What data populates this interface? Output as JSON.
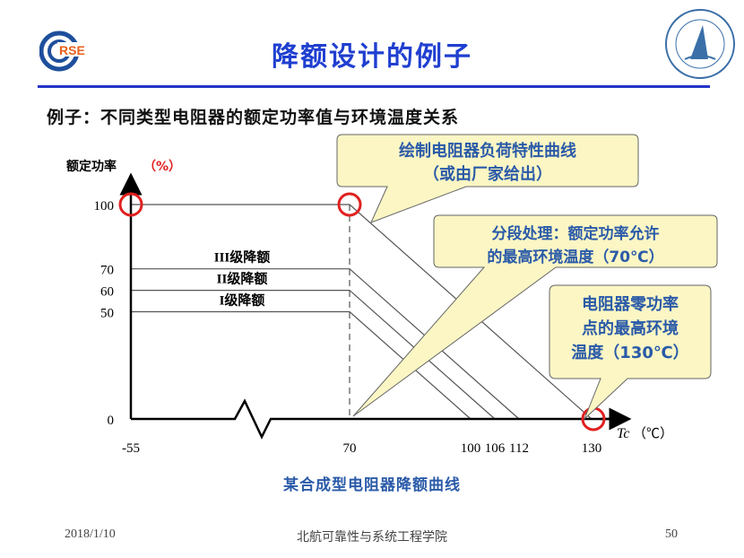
{
  "slide": {
    "title": "降额设计的例子",
    "subtitle": "例子：不同类型电阻器的额定功率值与环境温度关系",
    "caption": "某合成型电阻器降额曲线",
    "footer": {
      "date": "2018/1/10",
      "org": "北航可靠性与系统工程学院",
      "page": "50"
    },
    "logo_left_text": "RSE",
    "logo_right_text": "北京航空航天大学 BEIHANG UNIVERSITY 1952"
  },
  "colors": {
    "title": "#1f3fd0",
    "callout_fill": "#fbf6c4",
    "callout_text": "#2a5aa8",
    "marker": "#e02020"
  },
  "chart_data": {
    "type": "line",
    "ylabel": "额定功率",
    "ylabel_unit": "（%）",
    "xlabel": "Tc",
    "xlabel_unit": "（℃）",
    "x_ticks": [
      "-55",
      "70",
      "100",
      "106",
      "112",
      "130"
    ],
    "y_ticks": [
      "100",
      "70",
      "60",
      "50",
      "0"
    ],
    "x_axis_break": true,
    "series": [
      {
        "points": [
          [
            -55,
            100
          ],
          [
            70,
            100
          ],
          [
            130,
            0
          ]
        ]
      },
      {
        "name": "III级降额",
        "points": [
          [
            -55,
            70
          ],
          [
            70,
            70
          ],
          [
            112,
            0
          ]
        ]
      },
      {
        "name": "II级降额",
        "points": [
          [
            -55,
            60
          ],
          [
            70,
            60
          ],
          [
            106,
            0
          ]
        ]
      },
      {
        "name": "I级降额",
        "points": [
          [
            -55,
            50
          ],
          [
            70,
            50
          ],
          [
            100,
            0
          ]
        ]
      }
    ],
    "annotations": [
      {
        "text": [
          "绘制电阻器负荷特性曲线",
          "（或由厂家给出）"
        ]
      },
      {
        "text": [
          "分段处理：额定功率允许",
          "的最高环境温度（70℃）"
        ]
      },
      {
        "text": [
          "电阻器零功率",
          "点的最高环境",
          "温度（130℃）"
        ]
      }
    ]
  }
}
